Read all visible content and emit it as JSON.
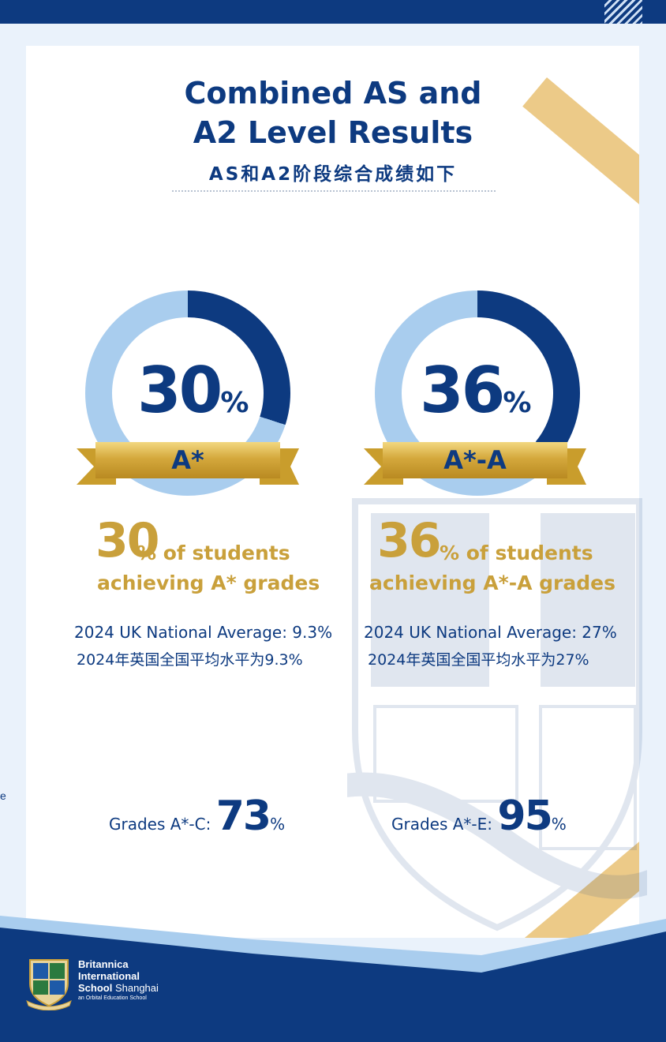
{
  "title": {
    "line1": "Combined AS and",
    "line2": "A2 Level Results",
    "chinese": "AS和A2阶段综合成绩如下"
  },
  "stats": [
    {
      "ring_percent": 30,
      "big_number": "30",
      "pct_sign": "%",
      "banner": "A*",
      "gold_number": "30",
      "gold_text_1": "% of students",
      "gold_text_2": "achieving A* grades",
      "national_en": "2024 UK National Average: 9.3%",
      "national_cn": "2024年英国全国平均水平为9.3%",
      "grade_label": "Grades A*-C: ",
      "grade_value": "73",
      "grade_pct": "%"
    },
    {
      "ring_percent": 36,
      "big_number": "36",
      "pct_sign": "%",
      "banner": "A*-A",
      "gold_number": "36",
      "gold_text_1": "% of students",
      "gold_text_2": "achieving A*-A grades",
      "national_en": "2024 UK National Average: 27%",
      "national_cn": "2024年英国全国平均水平为27%",
      "grade_label": "Grades A*-E: ",
      "grade_value": "95",
      "grade_pct": "%"
    }
  ],
  "edge_letter": "e",
  "footer": {
    "school_line1": "Britannica",
    "school_line2": "International",
    "school_line3_bold": "School",
    "school_line3": " Shanghai",
    "tagline": "an Orbital Education School"
  },
  "colors": {
    "navy": "#0d3a80",
    "light_blue": "#a9cdee",
    "gold": "#c9a03b",
    "ribbon": "#ecca88"
  }
}
